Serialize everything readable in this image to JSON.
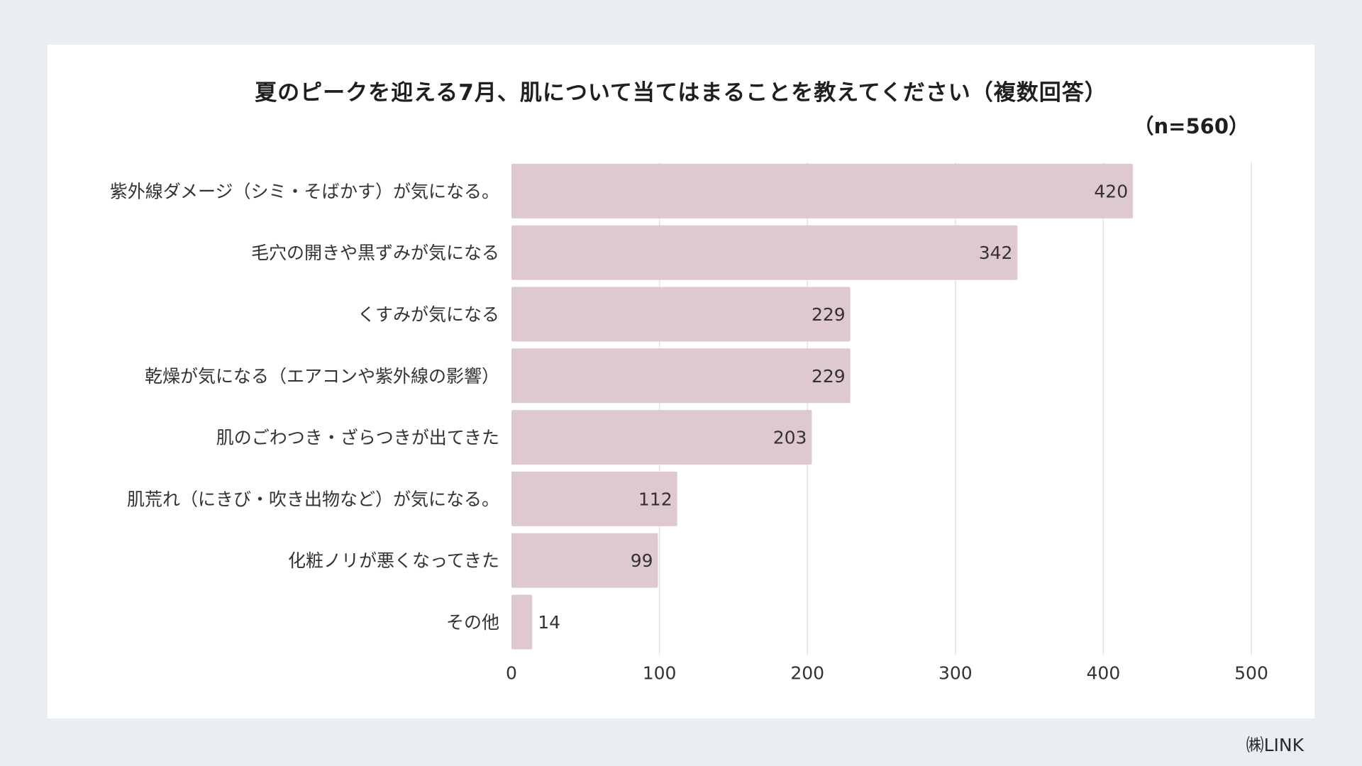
{
  "chart_data": {
    "type": "bar",
    "orientation": "horizontal",
    "title": "夏のピークを迎える7月、肌について当てはまることを教えてください（複数回答）",
    "subtitle": "（n=560）",
    "categories": [
      "紫外線ダメージ（シミ・そばかす）が気になる。",
      "毛穴の開きや黒ずみが気になる",
      "くすみが気になる",
      "乾燥が気になる（エアコンや紫外線の影響）",
      "肌のごわつき・ざらつきが出てきた",
      "肌荒れ（にきび・吹き出物など）が気になる。",
      "化粧ノリが悪くなってきた",
      "その他"
    ],
    "values": [
      420,
      342,
      229,
      229,
      203,
      112,
      99,
      14
    ],
    "xlim": [
      0,
      500
    ],
    "xticks": [
      0,
      100,
      200,
      300,
      400,
      500
    ],
    "xlabel": "",
    "ylabel": "",
    "grid": "vertical",
    "legend": "none",
    "bar_color": "#ddc9cf",
    "grid_color": "#e3e3e3"
  },
  "footer": {
    "credit": "㈱LINK"
  }
}
